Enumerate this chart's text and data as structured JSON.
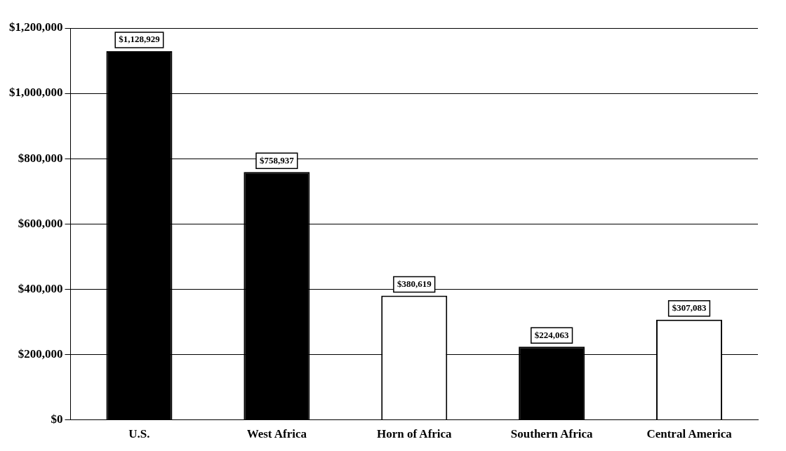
{
  "chart_data": {
    "type": "bar",
    "categories": [
      "U.S.",
      "West Africa",
      "Horn of Africa",
      "Southern Africa",
      "Central America"
    ],
    "values": [
      1128929,
      758937,
      380619,
      224063,
      307083
    ],
    "colors": [
      "#000000",
      "#000000",
      "#ffffff",
      "#000000",
      "#ffffff"
    ],
    "value_labels": [
      "$1,128,929",
      "$758,937",
      "$380,619",
      "$224,063",
      "$307,083"
    ],
    "ylim": [
      0,
      1200000
    ],
    "yticks": [
      {
        "value": 0,
        "label": "$0"
      },
      {
        "value": 200000,
        "label": "$200,000"
      },
      {
        "value": 400000,
        "label": "$400,000"
      },
      {
        "value": 600000,
        "label": "$600,000"
      },
      {
        "value": 800000,
        "label": "$800,000"
      },
      {
        "value": 1000000,
        "label": "$1,000,000"
      },
      {
        "value": 1200000,
        "label": "$1,200,000"
      }
    ],
    "grid": "y",
    "legend": false
  }
}
